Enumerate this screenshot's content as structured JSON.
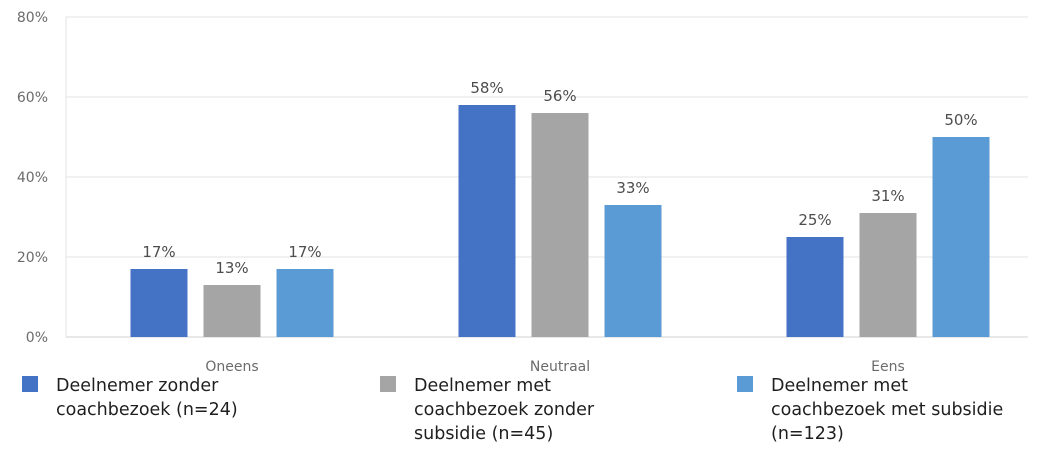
{
  "chart_data": {
    "type": "bar",
    "categories": [
      "Oneens",
      "Neutraal",
      "Eens"
    ],
    "series": [
      {
        "name": "Deelnemer zonder\ncoachbezoek (n=24)",
        "values": [
          17,
          58,
          25
        ],
        "labels": [
          "17%",
          "58%",
          "25%"
        ],
        "color": "#4472c4"
      },
      {
        "name": "Deelnemer met\ncoachbezoek zonder\nsubsidie (n=45)",
        "values": [
          13,
          56,
          31
        ],
        "labels": [
          "13%",
          "56%",
          "31%"
        ],
        "color": "#a5a5a5"
      },
      {
        "name": "Deelnemer met\ncoachbezoek met subsidie\n(n=123)",
        "values": [
          17,
          33,
          50
        ],
        "labels": [
          "17%",
          "33%",
          "50%"
        ],
        "color": "#5b9bd5"
      }
    ],
    "ylim": [
      0,
      80
    ],
    "yticks": [
      0,
      20,
      40,
      60,
      80
    ],
    "ytick_labels": [
      "0%",
      "20%",
      "40%",
      "60%",
      "80%"
    ],
    "grid": true,
    "legend_position": "bottom"
  }
}
